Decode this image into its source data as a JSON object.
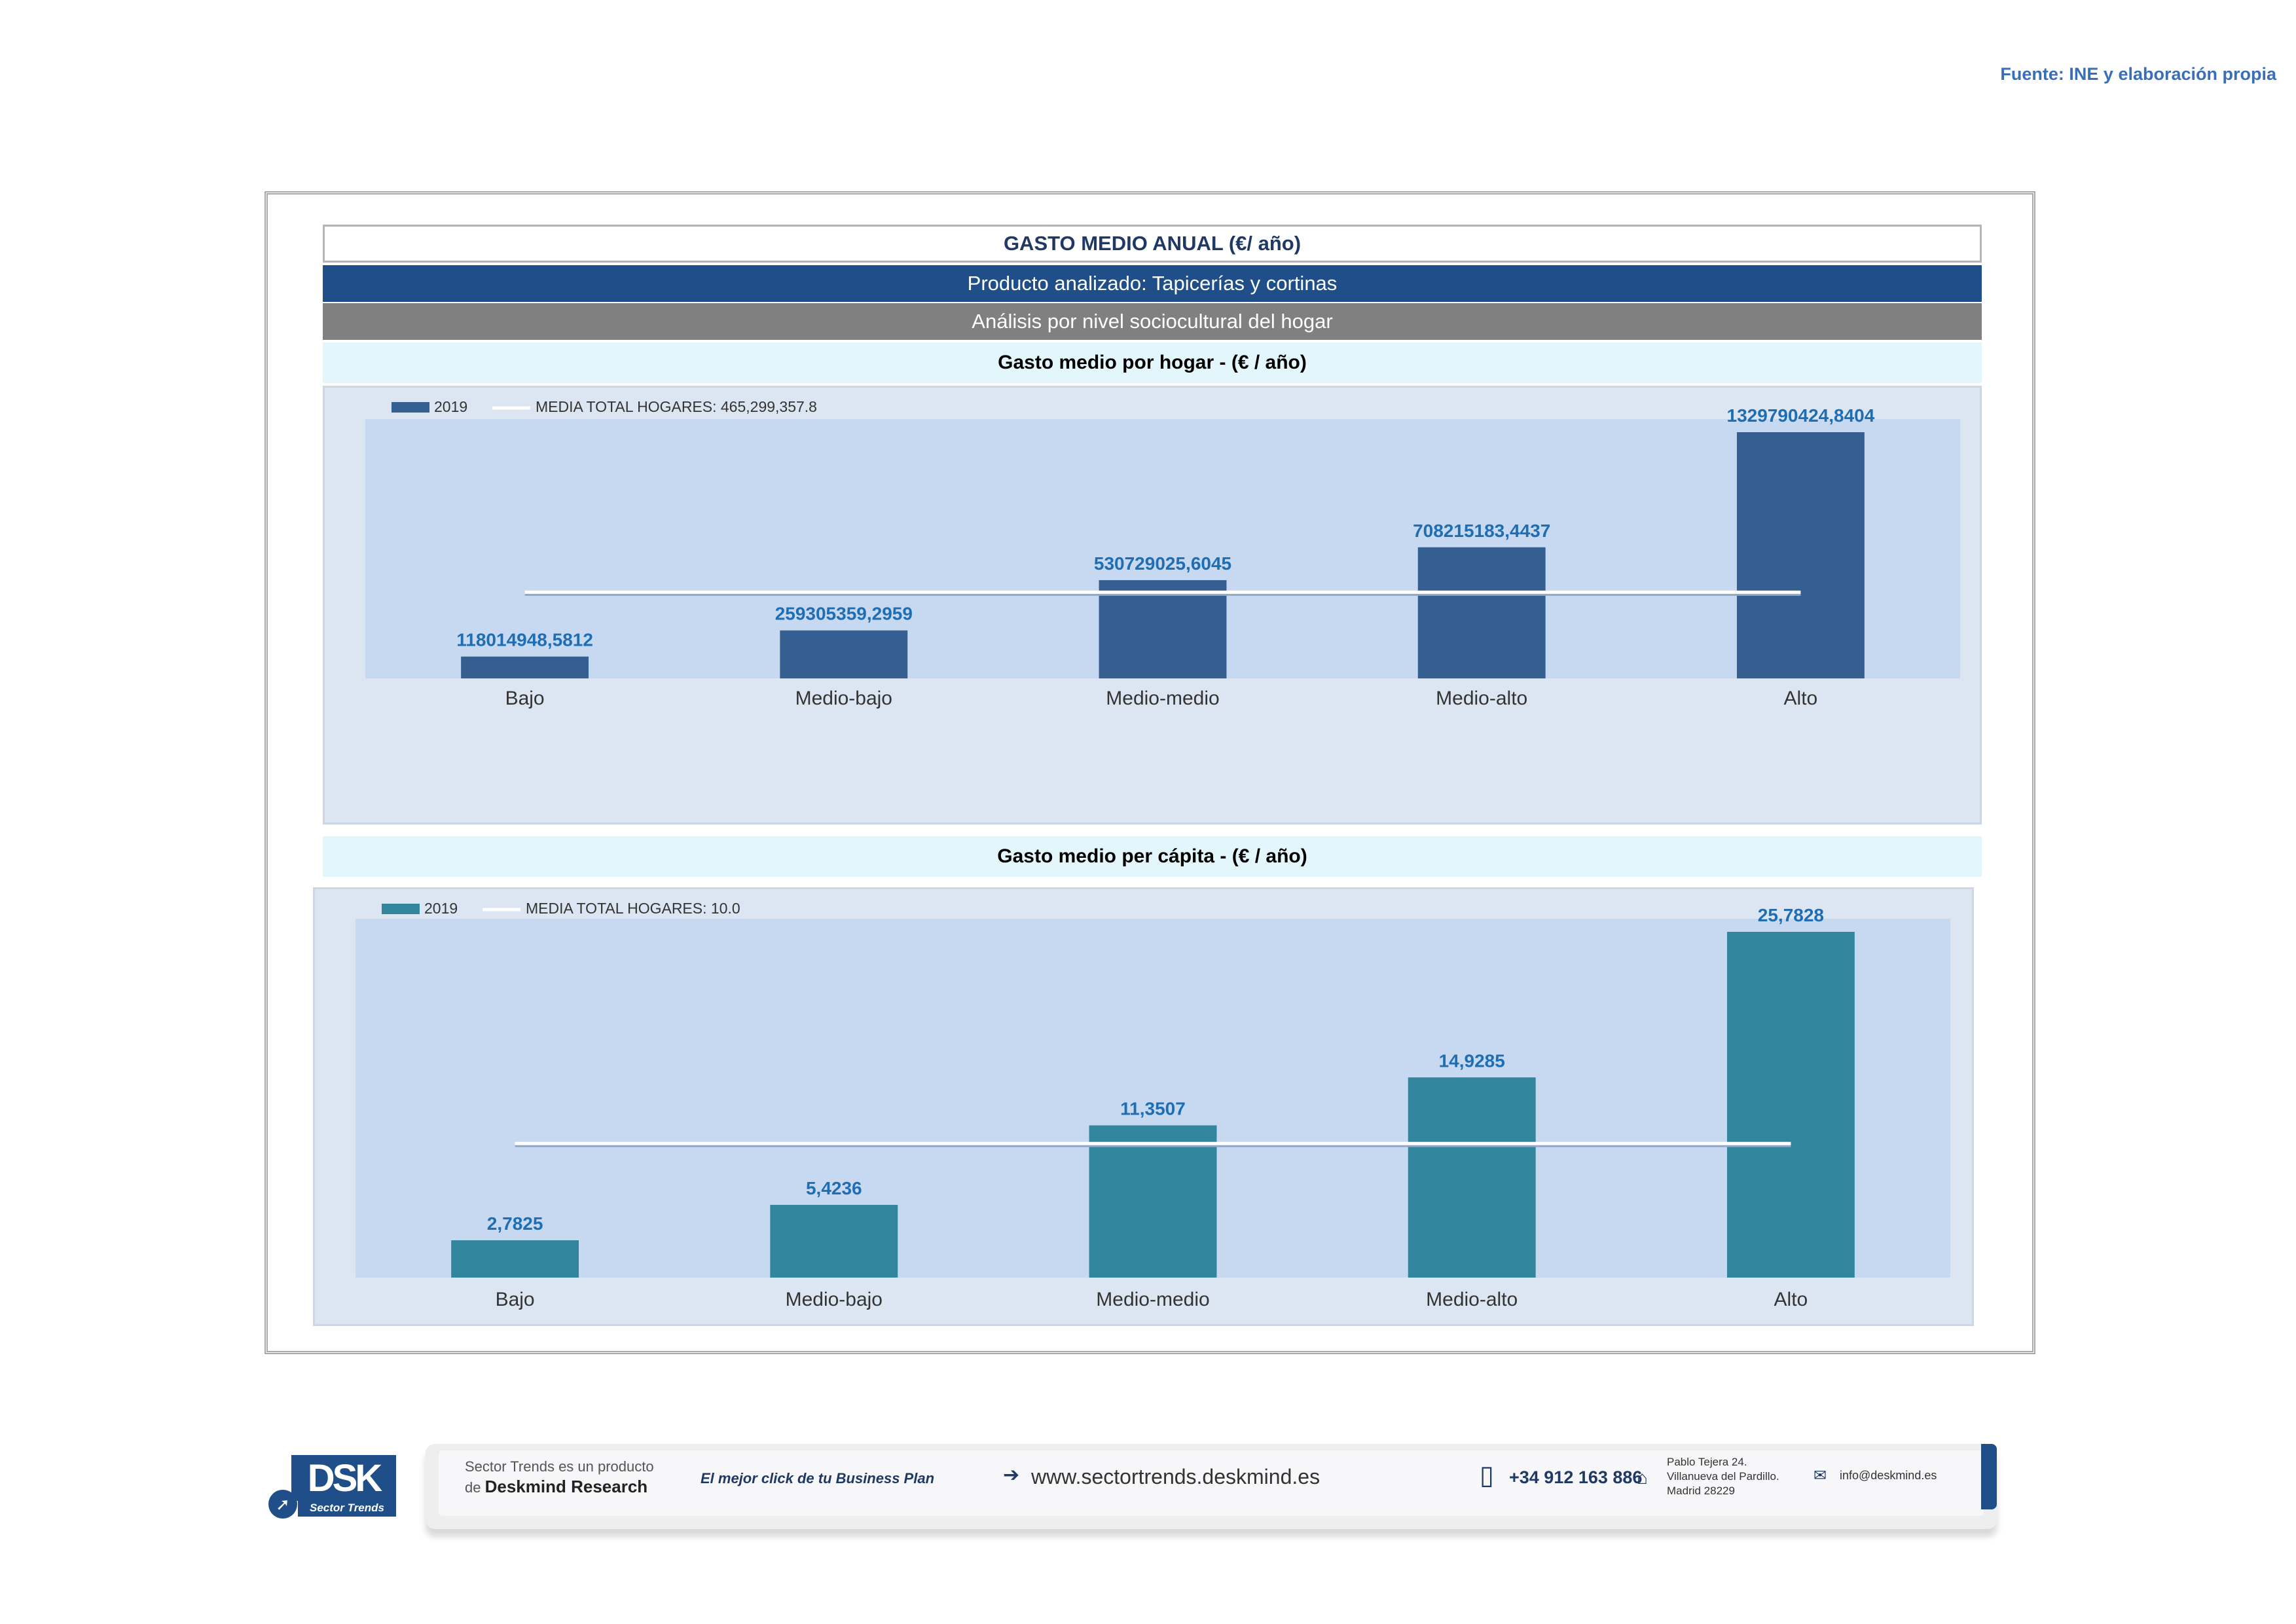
{
  "source": "Fuente: INE y elaboración propia",
  "header": {
    "title": "GASTO MEDIO ANUAL (€/ año)",
    "product": "Producto analizado: Tapicerías y cortinas",
    "analysis": "Análisis por nivel sociocultural del hogar"
  },
  "colors": {
    "bar_hogar": "#355f91",
    "bar_capita": "#31859c",
    "label_value": "#1f6eb4",
    "plot_bg": "#c6d9f1",
    "chart_bg": "#dce6f2",
    "media_line": "#ffffff"
  },
  "chart_data": [
    {
      "type": "bar",
      "title": "Gasto medio por hogar -  (€ / año)",
      "categories": [
        "Bajo",
        "Medio-bajo",
        "Medio-medio",
        "Medio-alto",
        "Alto"
      ],
      "series": [
        {
          "name": "2019",
          "values": [
            118014948.5812,
            259305359.2959,
            530729025.6045,
            708215183.4437,
            1329790424.8404
          ]
        }
      ],
      "value_labels": [
        "118014948,5812",
        "259305359,2959",
        "530729025,6045",
        "708215183,4437",
        "1329790424,8404"
      ],
      "reference_line": {
        "name": "MEDIA TOTAL  HOGARES:",
        "value": 465299357.8,
        "value_label": "465,299,357.8"
      },
      "ylim": [
        0,
        1329790424.8404
      ],
      "legend": "top-left"
    },
    {
      "type": "bar",
      "title": "Gasto medio per cápita -  (€ / año)",
      "categories": [
        "Bajo",
        "Medio-bajo",
        "Medio-medio",
        "Medio-alto",
        "Alto"
      ],
      "series": [
        {
          "name": "2019",
          "values": [
            2.7825,
            5.4236,
            11.3507,
            14.9285,
            25.7828
          ]
        }
      ],
      "value_labels": [
        "2,7825",
        "5,4236",
        "11,3507",
        "14,9285",
        "25,7828"
      ],
      "reference_line": {
        "name": "MEDIA TOTAL  HOGARES:",
        "value": 10.0,
        "value_label": "10.0"
      },
      "ylim": [
        0,
        25.7828
      ],
      "legend": "top-left"
    }
  ],
  "footer": {
    "logo": "DSK",
    "logo_sub": "Sector Trends",
    "product_line1": "Sector Trends es un producto",
    "product_line2_prefix": "de",
    "product_line2_brand": "Deskmind Research",
    "slogan": "El mejor click de tu Business Plan",
    "website": "www.sectortrends.deskmind.es",
    "phone": "+34 912 163 886",
    "address_line1": "Pablo Tejera 24.",
    "address_line2": "Villanueva del Pardillo.",
    "address_line3": "Madrid 28229",
    "email": "info@deskmind.es"
  }
}
